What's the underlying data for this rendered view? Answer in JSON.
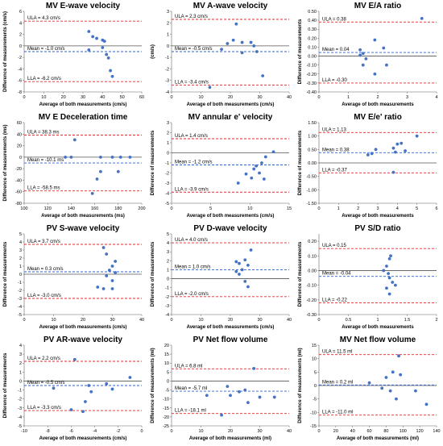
{
  "colors": {
    "points": "#4472c4",
    "limits": "#e8262a",
    "mean": "#2e62d8",
    "zero": "#555555",
    "axis": "#666666"
  },
  "chart_data": [
    {
      "type": "scatter",
      "title": "MV E-wave velocity",
      "xlabel": "Average of both measurements (cm/s)",
      "ylabel": "Difference of measurements (cm/s)",
      "xlim": [
        0,
        60
      ],
      "xticks": [
        0,
        10,
        20,
        30,
        40,
        50,
        60
      ],
      "ylim": [
        -8,
        6
      ],
      "yticks": [
        -8,
        -6,
        -4,
        -2,
        0,
        2,
        4,
        6
      ],
      "tick_decimals": 0,
      "ula": 4.3,
      "mean": -1.0,
      "lla": -6.2,
      "ula_label": "ULA = 4.3 cm/s",
      "mean_label": "Mean = -1.0 cm/s",
      "lla_label": "LLA = -6.2 cm/s",
      "points": [
        [
          33,
          2.5
        ],
        [
          35,
          1.6
        ],
        [
          37,
          1.3
        ],
        [
          40,
          1.0
        ],
        [
          41,
          0.8
        ],
        [
          33,
          -0.7
        ],
        [
          42,
          -1.5
        ],
        [
          43,
          -2.1
        ],
        [
          44,
          -4.3
        ],
        [
          45,
          -5.3
        ],
        [
          40,
          -0.3
        ]
      ]
    },
    {
      "type": "scatter",
      "title": "MV A-wave velocity",
      "xlabel": "Average of both measurements (cm/s)",
      "ylabel": "(cm/s)",
      "xlim": [
        0,
        40
      ],
      "xticks": [
        0,
        10,
        20,
        30,
        40
      ],
      "ylim": [
        -4,
        3
      ],
      "yticks": [
        -4,
        -3,
        -2,
        -1,
        0,
        1,
        2,
        3
      ],
      "tick_decimals": 0,
      "ula": 2.3,
      "mean": -0.5,
      "lla": -3.4,
      "ula_label": "ULA = 2.3 cm/s",
      "mean_label": "Mean = -0.5 cm/s",
      "lla_label": "LLA = -3.4 cm/s",
      "points": [
        [
          22,
          1.9
        ],
        [
          19,
          0.2
        ],
        [
          21,
          0.5
        ],
        [
          24,
          0.3
        ],
        [
          27,
          0.3
        ],
        [
          28,
          0.0
        ],
        [
          17,
          -0.3
        ],
        [
          24,
          -0.6
        ],
        [
          29,
          -0.5
        ],
        [
          31,
          -2.6
        ],
        [
          13,
          -3.6
        ]
      ]
    },
    {
      "type": "scatter",
      "title": "MV E/A ratio",
      "xlabel": "Average of both measurements",
      "ylabel": "Difference of measurements",
      "xlim": [
        0,
        4
      ],
      "xticks": [
        0,
        1,
        2,
        3,
        4
      ],
      "ylim": [
        -0.4,
        0.5
      ],
      "yticks": [
        -0.4,
        -0.3,
        -0.2,
        -0.1,
        0,
        0.1,
        0.2,
        0.3,
        0.4,
        0.5
      ],
      "tick_decimals": 2,
      "ula": 0.38,
      "mean": 0.04,
      "lla": -0.3,
      "ula_label": "ULA = 0.38",
      "mean_label": "Mean = 0.04",
      "lla_label": "LLA = -0.30",
      "points": [
        [
          3.5,
          0.42
        ],
        [
          1.9,
          0.18
        ],
        [
          2.2,
          0.09
        ],
        [
          1.4,
          0.07
        ],
        [
          1.5,
          0.03
        ],
        [
          1.6,
          -0.03
        ],
        [
          1.5,
          -0.1
        ],
        [
          2.3,
          -0.1
        ],
        [
          1.9,
          -0.2
        ],
        [
          1.4,
          0.01
        ]
      ]
    },
    {
      "type": "scatter",
      "title": "MV E Deceleration time",
      "xlabel": "Average of both measurements (ms)",
      "ylabel": "Difference of measurements (ms)",
      "xlim": [
        100,
        200
      ],
      "xticks": [
        100,
        120,
        140,
        160,
        180,
        200
      ],
      "ylim": [
        -80,
        60
      ],
      "yticks": [
        -80,
        -60,
        -40,
        -20,
        0,
        20,
        40,
        60
      ],
      "tick_decimals": 0,
      "ula": 38.3,
      "mean": -10.1,
      "lla": -58.5,
      "ula_label": "ULA = 38.3 ms",
      "mean_label": "Mean = -10.1 ms",
      "lla_label": "LLA = -58.5 ms",
      "points": [
        [
          143,
          30
        ],
        [
          135,
          0
        ],
        [
          140,
          0
        ],
        [
          165,
          0
        ],
        [
          175,
          0
        ],
        [
          182,
          0
        ],
        [
          190,
          0
        ],
        [
          165,
          -25
        ],
        [
          180,
          -25
        ],
        [
          162,
          -38
        ],
        [
          158,
          -63
        ]
      ]
    },
    {
      "type": "scatter",
      "title": "MV annular e' velocity",
      "xlabel": "Average of both measurements (cm/s)",
      "ylabel": "Difference of measurements",
      "xlim": [
        0,
        15
      ],
      "xticks": [
        0,
        5,
        10,
        15
      ],
      "ylim": [
        -5,
        3
      ],
      "yticks": [
        -5,
        -4,
        -3,
        -2,
        -1,
        0,
        1,
        2,
        3
      ],
      "tick_decimals": 0,
      "ula": 1.4,
      "mean": -1.2,
      "lla": -3.9,
      "ula_label": "ULA = 1.4 cm/s",
      "mean_label": "Mean = -1.2 cm/s",
      "lla_label": "LLA = -3.9 cm/s",
      "points": [
        [
          13,
          0.1
        ],
        [
          12,
          -0.4
        ],
        [
          11.5,
          -1.0
        ],
        [
          10.8,
          -1.3
        ],
        [
          10.5,
          -1.6
        ],
        [
          11.2,
          -2.0
        ],
        [
          9.5,
          -2.1
        ],
        [
          10.2,
          -2.5
        ],
        [
          11.8,
          -2.6
        ],
        [
          8.5,
          -3.0
        ]
      ]
    },
    {
      "type": "scatter",
      "title": "MV E/e' ratio",
      "xlabel": "Average of both measurements",
      "ylabel": "Difference of measurements",
      "xlim": [
        0,
        6
      ],
      "xticks": [
        0,
        1,
        2,
        3,
        4,
        5,
        6
      ],
      "ylim": [
        -1.5,
        1.5
      ],
      "yticks": [
        -1.5,
        -1,
        -0.5,
        0,
        0.5,
        1,
        1.5
      ],
      "tick_decimals": 2,
      "ula": 1.13,
      "mean": 0.38,
      "lla": -0.37,
      "ula_label": "ULA = 1.13",
      "mean_label": "Mean = 0.38",
      "lla_label": "LLA = -0.37",
      "points": [
        [
          5,
          1.0
        ],
        [
          4.2,
          0.73
        ],
        [
          4.0,
          0.7
        ],
        [
          3.8,
          0.55
        ],
        [
          2.9,
          0.5
        ],
        [
          2.7,
          0.35
        ],
        [
          2.5,
          0.3
        ],
        [
          4.4,
          0.45
        ],
        [
          3.9,
          0.4
        ],
        [
          3.8,
          -0.35
        ]
      ]
    },
    {
      "type": "scatter",
      "title": "PV S-wave velocity",
      "xlabel": "Average of both measurements (cm/s)",
      "ylabel": "Difference of measurements",
      "xlim": [
        0,
        40
      ],
      "xticks": [
        0,
        10,
        20,
        30,
        40
      ],
      "ylim": [
        -5,
        5
      ],
      "yticks": [
        -5,
        -4,
        -3,
        -2,
        -1,
        0,
        1,
        2,
        3,
        4,
        5
      ],
      "tick_decimals": 0,
      "ula": 3.7,
      "mean": 0.3,
      "lla": -3.0,
      "ula_label": "ULA = 3.7 cm/s",
      "mean_label": "Mean = 0.3 cm/s",
      "lla_label": "LLA = -3.0 cm/s",
      "points": [
        [
          27,
          3.3
        ],
        [
          28,
          2.5
        ],
        [
          31,
          1.6
        ],
        [
          30,
          1.0
        ],
        [
          29,
          0.5
        ],
        [
          31,
          0.2
        ],
        [
          28,
          -0.2
        ],
        [
          30,
          -0.8
        ],
        [
          25,
          -1.6
        ],
        [
          27,
          -1.8
        ],
        [
          30,
          -1.8
        ]
      ]
    },
    {
      "type": "scatter",
      "title": "PV D-wave velocity",
      "xlabel": "Average of both measurements (cm/s)",
      "ylabel": "Difference of measurements",
      "xlim": [
        0,
        40
      ],
      "xticks": [
        0,
        10,
        20,
        30,
        40
      ],
      "ylim": [
        -4,
        5
      ],
      "yticks": [
        -4,
        -3,
        -2,
        -1,
        0,
        1,
        2,
        3,
        4,
        5
      ],
      "tick_decimals": 0,
      "ula": 4.0,
      "mean": 1.0,
      "lla": -2.0,
      "ula_label": "ULA = 4.0 cm/s",
      "mean_label": "Mean = 1.0 cm/s",
      "lla_label": "LLA = -2.0 cm/s",
      "points": [
        [
          27,
          3.2
        ],
        [
          25,
          2.1
        ],
        [
          22,
          1.9
        ],
        [
          23,
          1.7
        ],
        [
          26,
          1.5
        ],
        [
          24,
          1.0
        ],
        [
          22,
          0.8
        ],
        [
          23,
          0.5
        ],
        [
          25,
          -0.3
        ],
        [
          26,
          -0.9
        ]
      ]
    },
    {
      "type": "scatter",
      "title": "PV S/D ratio",
      "xlabel": "Average of both measurements",
      "ylabel": "Difference of measurements",
      "xlim": [
        0,
        2
      ],
      "xticks": [
        0,
        0.5,
        1,
        1.5,
        2
      ],
      "ylim": [
        -0.3,
        0.25
      ],
      "yticks": [
        -0.3,
        -0.2,
        -0.1,
        0,
        0.1,
        0.2
      ],
      "tick_decimals": 2,
      "ula": 0.15,
      "mean": -0.04,
      "lla": -0.22,
      "ula_label": "ULA = 0.15",
      "mean_label": "Mean = -0.04",
      "lla_label": "LLA = -0.22",
      "points": [
        [
          1.22,
          0.1
        ],
        [
          1.2,
          0.08
        ],
        [
          1.15,
          0.03
        ],
        [
          1.1,
          0.0
        ],
        [
          1.18,
          -0.02
        ],
        [
          1.2,
          -0.05
        ],
        [
          1.25,
          -0.08
        ],
        [
          1.3,
          -0.1
        ],
        [
          1.15,
          -0.12
        ],
        [
          1.2,
          -0.16
        ]
      ]
    },
    {
      "type": "scatter",
      "title": "PV AR-wave velocity",
      "xlabel": "Average of both measurements (cm/s)",
      "ylabel": "Difference of measurements",
      "xlim": [
        -10,
        0
      ],
      "xticks": [
        -10,
        -8,
        -6,
        -4,
        -2,
        0
      ],
      "ylim": [
        -5,
        4
      ],
      "yticks": [
        -5,
        -4,
        -3,
        -2,
        -1,
        0,
        1,
        2,
        3,
        4
      ],
      "tick_decimals": 0,
      "ula": 2.2,
      "mean": -0.5,
      "lla": -3.3,
      "ula_label": "ULA = 2.2 cm/s",
      "mean_label": "Mean = -0.5 cm/s",
      "lla_label": "LLA = -3.3 cm/s",
      "points": [
        [
          -5.7,
          2.4
        ],
        [
          -1.0,
          0.4
        ],
        [
          -4.5,
          -0.5
        ],
        [
          -2.5,
          -0.9
        ],
        [
          -4.3,
          -1.2
        ],
        [
          -4.8,
          -2.3
        ],
        [
          -6.0,
          -3.2
        ],
        [
          -5.0,
          -3.4
        ],
        [
          -3.0,
          -0.3
        ],
        [
          -7.5,
          -0.8
        ]
      ]
    },
    {
      "type": "scatter",
      "title": "PV Net flow volume",
      "xlabel": "Average of both measurements (ml)",
      "ylabel": "Difference of measurements (ml)",
      "xlim": [
        0,
        40
      ],
      "xticks": [
        0,
        10,
        20,
        30,
        40
      ],
      "ylim": [
        -25,
        20
      ],
      "yticks": [
        -25,
        -20,
        -15,
        -10,
        -5,
        0,
        5,
        10,
        15,
        20
      ],
      "tick_decimals": 0,
      "ula": 6.8,
      "mean": -5.7,
      "lla": -18.1,
      "ula_label": "ULA = 6.8 ml",
      "mean_label": "Mean = -5.7 ml",
      "lla_label": "LLA = -18.1 ml",
      "points": [
        [
          28,
          7
        ],
        [
          19,
          -3
        ],
        [
          25,
          -5
        ],
        [
          23,
          -6
        ],
        [
          12,
          -8
        ],
        [
          20,
          -8
        ],
        [
          30,
          -9
        ],
        [
          35,
          -9
        ],
        [
          26,
          -12
        ],
        [
          17,
          -19
        ]
      ]
    },
    {
      "type": "scatter",
      "title": "MV Net flow volume",
      "xlabel": "Average of both measurements (ml)",
      "ylabel": "Difference of measurements (ml)",
      "xlim": [
        0,
        140
      ],
      "xticks": [
        0,
        20,
        40,
        60,
        80,
        100,
        120,
        140
      ],
      "ylim": [
        -15,
        15
      ],
      "yticks": [
        -15,
        -10,
        -5,
        0,
        5,
        10,
        15
      ],
      "tick_decimals": 0,
      "ula": 11.5,
      "mean": 0.2,
      "lla": -11.0,
      "ula_label": "ULA = 11.5 ml",
      "mean_label": "Mean = 0.2 ml",
      "lla_label": "LLA = -11.0 ml",
      "points": [
        [
          95,
          11
        ],
        [
          88,
          5
        ],
        [
          97,
          4
        ],
        [
          80,
          3
        ],
        [
          75,
          -1
        ],
        [
          115,
          -2
        ],
        [
          60,
          1
        ],
        [
          85,
          -2
        ],
        [
          92,
          -5
        ],
        [
          128,
          -7
        ]
      ]
    }
  ]
}
